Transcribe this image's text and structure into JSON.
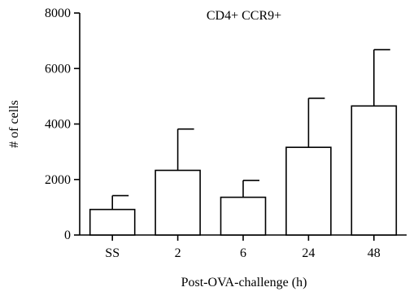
{
  "chart_data": {
    "type": "bar",
    "title": "CD4+ CCR9+",
    "xlabel": "Post-OVA-challenge (h)",
    "ylabel": "# of cells",
    "categories": [
      "SS",
      "2",
      "6",
      "24",
      "48"
    ],
    "values": [
      920,
      2330,
      1360,
      3160,
      4650
    ],
    "error_upper": [
      1420,
      3820,
      1970,
      4930,
      6680
    ],
    "ylim": [
      0,
      8000
    ],
    "yticks": [
      0,
      2000,
      4000,
      6000,
      8000
    ],
    "ytick_labels": [
      "0",
      "2000",
      "4000",
      "6000",
      "8000"
    ],
    "grid": false,
    "colors": {
      "bar_fill": "#ffffff",
      "bar_stroke": "#000000"
    }
  }
}
